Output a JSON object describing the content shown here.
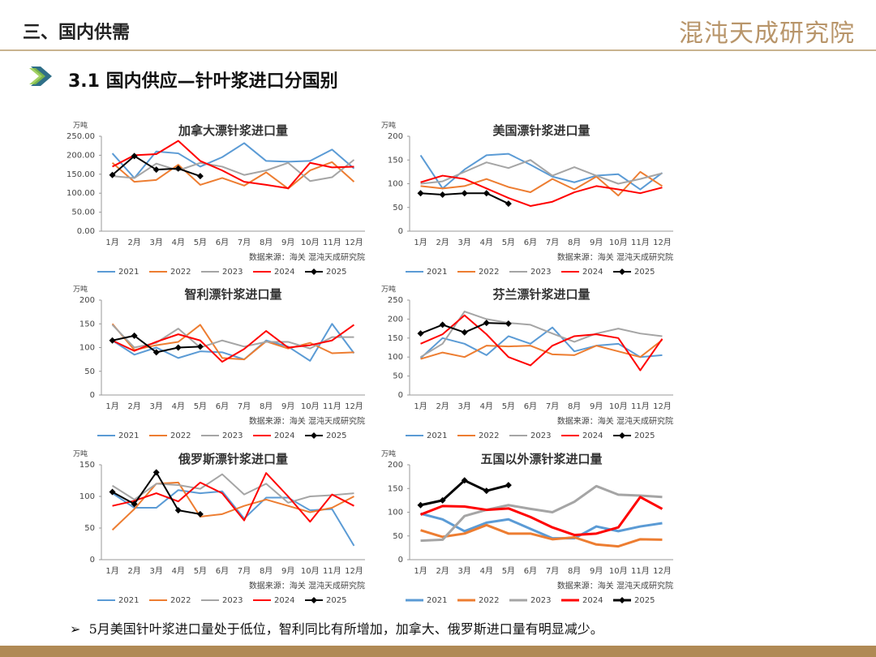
{
  "header": {
    "title": "三、国内供需",
    "logo": "混沌天成研究院"
  },
  "section_title": "3.1 国内供应—针叶浆进口分国别",
  "note": "5月美国针叶浆进口量处于低位，智利同比有所增加，加拿大、俄罗斯进口量有明显减少。",
  "chart_data": [
    {
      "type": "line",
      "title": "加拿大漂针浆进口量",
      "y_unit": "万吨",
      "source": "数据来源：海关  混沌天成研究院",
      "line_width": 2,
      "categories": [
        "1月",
        "2月",
        "3月",
        "4月",
        "5月",
        "6月",
        "7月",
        "8月",
        "9月",
        "10月",
        "11月",
        "12月"
      ],
      "ylim": [
        0,
        250
      ],
      "yticks": [
        {
          "value": 0,
          "label": "0.00"
        },
        {
          "value": 50,
          "label": "50.00"
        },
        {
          "value": 100,
          "label": "100.00"
        },
        {
          "value": 150,
          "label": "150.00"
        },
        {
          "value": 200,
          "label": "200.00"
        },
        {
          "value": 250,
          "label": "250.00"
        }
      ],
      "series": [
        {
          "name": "2021",
          "color": "#5b9bd5",
          "values": [
            205,
            140,
            210,
            205,
            170,
            195,
            232,
            185,
            183,
            185,
            215,
            165
          ]
        },
        {
          "name": "2022",
          "color": "#ed7d31",
          "values": [
            180,
            130,
            135,
            175,
            122,
            140,
            120,
            155,
            112,
            160,
            182,
            130
          ]
        },
        {
          "name": "2023",
          "color": "#a5a5a5",
          "values": [
            145,
            140,
            178,
            160,
            180,
            170,
            148,
            160,
            180,
            132,
            142,
            188
          ]
        },
        {
          "name": "2024",
          "color": "#ff0000",
          "values": [
            170,
            200,
            203,
            238,
            185,
            160,
            130,
            122,
            113,
            180,
            168,
            170
          ]
        },
        {
          "name": "2025",
          "color": "#000000",
          "marker": true,
          "values": [
            148,
            198,
            162,
            165,
            145,
            null,
            null,
            null,
            null,
            null,
            null,
            null
          ]
        }
      ]
    },
    {
      "type": "line",
      "title": "美国漂针浆进口量",
      "y_unit": "万吨",
      "source": "数据来源：海关  混沌天成研究院",
      "line_width": 2,
      "categories": [
        "1月",
        "2月",
        "3月",
        "4月",
        "5月",
        "6月",
        "7月",
        "8月",
        "9月",
        "10月",
        "11月",
        "12月"
      ],
      "ylim": [
        0,
        200
      ],
      "yticks": [
        0,
        50,
        100,
        150,
        200
      ],
      "series": [
        {
          "name": "2021",
          "color": "#5b9bd5",
          "values": [
            160,
            90,
            130,
            160,
            163,
            140,
            115,
            103,
            117,
            120,
            88,
            123
          ]
        },
        {
          "name": "2022",
          "color": "#ed7d31",
          "values": [
            95,
            90,
            95,
            110,
            93,
            82,
            110,
            88,
            115,
            75,
            125,
            95
          ]
        },
        {
          "name": "2023",
          "color": "#a5a5a5",
          "values": [
            100,
            105,
            125,
            145,
            133,
            150,
            117,
            135,
            117,
            100,
            110,
            122
          ]
        },
        {
          "name": "2024",
          "color": "#ff0000",
          "values": [
            103,
            117,
            110,
            90,
            70,
            53,
            62,
            82,
            95,
            88,
            80,
            92
          ]
        },
        {
          "name": "2025",
          "color": "#000000",
          "marker": true,
          "values": [
            80,
            77,
            80,
            80,
            58,
            null,
            null,
            null,
            null,
            null,
            null,
            null
          ]
        }
      ]
    },
    {
      "type": "line",
      "title": "智利漂针浆进口量",
      "y_unit": "万吨",
      "source": "数据来源：海关  混沌天成研究院",
      "line_width": 2,
      "categories": [
        "1月",
        "2月",
        "3月",
        "4月",
        "5月",
        "6月",
        "7月",
        "8月",
        "9月",
        "10月",
        "11月",
        "12月"
      ],
      "ylim": [
        0,
        200
      ],
      "yticks": [
        0,
        50,
        100,
        150,
        200
      ],
      "series": [
        {
          "name": "2021",
          "color": "#5b9bd5",
          "values": [
            115,
            85,
            100,
            78,
            92,
            90,
            75,
            115,
            102,
            72,
            150,
            88
          ]
        },
        {
          "name": "2022",
          "color": "#ed7d31",
          "values": [
            150,
            95,
            105,
            112,
            148,
            78,
            75,
            113,
            98,
            110,
            88,
            90
          ]
        },
        {
          "name": "2023",
          "color": "#a5a5a5",
          "values": [
            148,
            100,
            110,
            140,
            100,
            115,
            102,
            112,
            112,
            98,
            122,
            122
          ]
        },
        {
          "name": "2024",
          "color": "#ff0000",
          "values": [
            115,
            93,
            112,
            128,
            115,
            70,
            97,
            135,
            100,
            105,
            115,
            148
          ]
        },
        {
          "name": "2025",
          "color": "#000000",
          "marker": true,
          "values": [
            115,
            125,
            90,
            100,
            102,
            null,
            null,
            null,
            null,
            null,
            null,
            null
          ]
        }
      ]
    },
    {
      "type": "line",
      "title": "芬兰漂针浆进口量",
      "y_unit": "万吨",
      "source": "数据来源：海关  混沌天成研究院",
      "line_width": 2,
      "categories": [
        "1月",
        "2月",
        "3月",
        "4月",
        "5月",
        "6月",
        "7月",
        "8月",
        "9月",
        "10月",
        "11月",
        "12月"
      ],
      "ylim": [
        0,
        250
      ],
      "yticks": [
        0,
        50,
        100,
        150,
        200,
        250
      ],
      "series": [
        {
          "name": "2021",
          "color": "#5b9bd5",
          "values": [
            97,
            150,
            135,
            105,
            155,
            135,
            178,
            115,
            130,
            135,
            100,
            105
          ]
        },
        {
          "name": "2022",
          "color": "#ed7d31",
          "values": [
            95,
            112,
            100,
            130,
            128,
            130,
            107,
            105,
            130,
            115,
            100,
            145
          ]
        },
        {
          "name": "2023",
          "color": "#a5a5a5",
          "values": [
            100,
            135,
            220,
            200,
            190,
            185,
            162,
            140,
            162,
            175,
            162,
            155
          ]
        },
        {
          "name": "2024",
          "color": "#ff0000",
          "values": [
            135,
            160,
            210,
            160,
            100,
            78,
            130,
            155,
            160,
            150,
            65,
            148
          ]
        },
        {
          "name": "2025",
          "color": "#000000",
          "marker": true,
          "values": [
            162,
            185,
            165,
            190,
            188,
            null,
            null,
            null,
            null,
            null,
            null,
            null
          ]
        }
      ]
    },
    {
      "type": "line",
      "title": "俄罗斯漂针浆进口量",
      "y_unit": "万吨",
      "source": "数据来源：海关  混沌天成研究院",
      "line_width": 2,
      "categories": [
        "1月",
        "2月",
        "3月",
        "4月",
        "5月",
        "6月",
        "7月",
        "8月",
        "9月",
        "10月",
        "11月",
        "12月"
      ],
      "ylim": [
        0,
        150
      ],
      "yticks": [
        0,
        50,
        100,
        150
      ],
      "series": [
        {
          "name": "2021",
          "color": "#5b9bd5",
          "values": [
            105,
            82,
            82,
            110,
            105,
            108,
            65,
            98,
            98,
            78,
            80,
            22
          ]
        },
        {
          "name": "2022",
          "color": "#ed7d31",
          "values": [
            47,
            80,
            120,
            122,
            68,
            72,
            85,
            95,
            85,
            75,
            82,
            100
          ]
        },
        {
          "name": "2023",
          "color": "#a5a5a5",
          "values": [
            117,
            95,
            120,
            118,
            112,
            135,
            103,
            120,
            90,
            100,
            102,
            105
          ]
        },
        {
          "name": "2024",
          "color": "#ff0000",
          "values": [
            85,
            93,
            105,
            92,
            122,
            105,
            62,
            137,
            100,
            60,
            103,
            85
          ]
        },
        {
          "name": "2025",
          "color": "#000000",
          "marker": true,
          "values": [
            107,
            88,
            138,
            78,
            72,
            null,
            null,
            null,
            null,
            null,
            null,
            null
          ]
        }
      ]
    },
    {
      "type": "line",
      "title": "五国以外漂针浆进口量",
      "y_unit": "万吨",
      "source": "数据来源：海关  混沌天成研究院",
      "line_width": 3,
      "categories": [
        "1月",
        "2月",
        "3月",
        "4月",
        "5月",
        "6月",
        "7月",
        "8月",
        "9月",
        "10月",
        "11月",
        "12月"
      ],
      "ylim": [
        0,
        200
      ],
      "yticks": [
        0,
        50,
        100,
        150,
        200
      ],
      "series": [
        {
          "name": "2021",
          "color": "#5b9bd5",
          "values": [
            97,
            85,
            60,
            78,
            85,
            65,
            45,
            45,
            70,
            60,
            70,
            77
          ]
        },
        {
          "name": "2022",
          "color": "#ed7d31",
          "values": [
            62,
            48,
            55,
            73,
            55,
            55,
            43,
            47,
            32,
            28,
            43,
            42
          ]
        },
        {
          "name": "2023",
          "color": "#a5a5a5",
          "values": [
            40,
            42,
            92,
            105,
            115,
            107,
            100,
            122,
            155,
            137,
            135,
            132
          ]
        },
        {
          "name": "2024",
          "color": "#ff0000",
          "values": [
            95,
            113,
            112,
            105,
            108,
            90,
            68,
            52,
            55,
            68,
            132,
            107
          ]
        },
        {
          "name": "2025",
          "color": "#000000",
          "marker": true,
          "values": [
            115,
            125,
            167,
            145,
            157,
            null,
            null,
            null,
            null,
            null,
            null,
            null
          ]
        }
      ]
    }
  ]
}
